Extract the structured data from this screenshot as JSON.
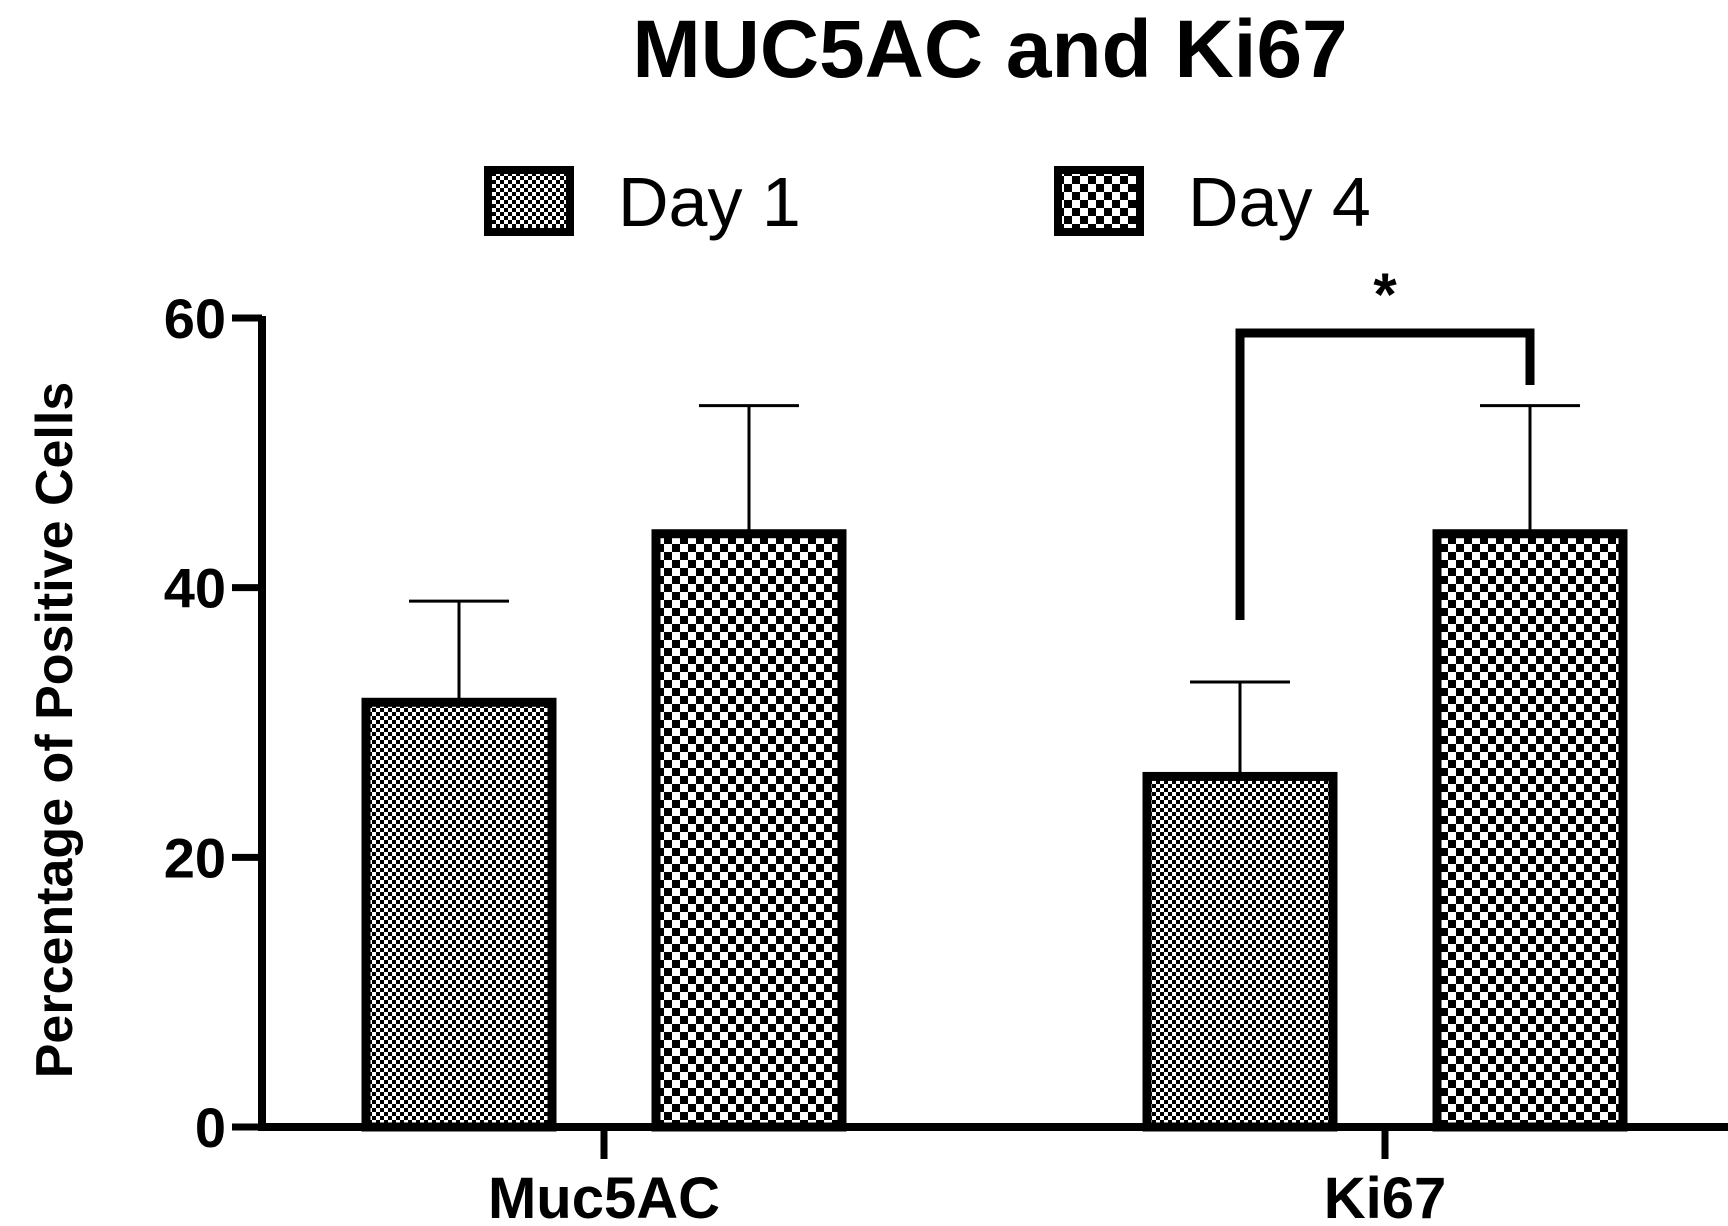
{
  "chart_data": {
    "type": "bar",
    "title": "MUC5AC and Ki67",
    "xlabel": "",
    "ylabel": "Percentage of Positive Cells",
    "ylim": [
      0,
      60
    ],
    "yticks": [
      0,
      20,
      40,
      60
    ],
    "categories": [
      "Muc5AC",
      "Ki67"
    ],
    "series": [
      {
        "name": "Day 1",
        "values": [
          31.5,
          26
        ],
        "errors": [
          7.5,
          7
        ]
      },
      {
        "name": "Day 4",
        "values": [
          44,
          44
        ],
        "errors": [
          9.5,
          9.5
        ]
      }
    ],
    "legend_position": "top-center",
    "grid": false,
    "annotations": [
      {
        "type": "significance",
        "category": "Ki67",
        "label": "*"
      }
    ]
  }
}
